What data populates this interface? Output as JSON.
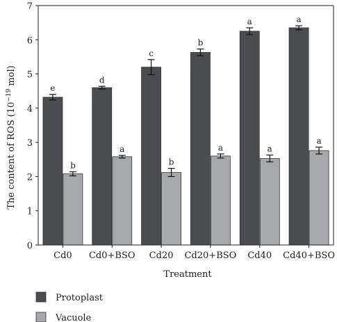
{
  "chart_data": {
    "type": "bar",
    "title": "",
    "xlabel": "Treatment",
    "ylabel": "The content of ROS (10",
    "ylabel_sup": "−19",
    "ylabel_unit": " mol)",
    "ylim": [
      0,
      7
    ],
    "yticks": [
      "0",
      "1",
      "2",
      "3",
      "4",
      "5",
      "6",
      "7"
    ],
    "categories": [
      "Cd0",
      "Cd0+BSO",
      "Cd20",
      "Cd20+BSO",
      "Cd40",
      "Cd40+BSO"
    ],
    "series": [
      {
        "name": "Protoplast",
        "color": "#4a4c50",
        "values": [
          4.32,
          4.6,
          5.2,
          5.63,
          6.25,
          6.35
        ],
        "errors": [
          0.08,
          0.04,
          0.22,
          0.1,
          0.1,
          0.06
        ],
        "letters": [
          "e",
          "d",
          "c",
          "b",
          "a",
          "a"
        ]
      },
      {
        "name": "Vacuole",
        "color": "#a6a8ab",
        "values": [
          2.08,
          2.58,
          2.12,
          2.6,
          2.53,
          2.76
        ],
        "errors": [
          0.06,
          0.04,
          0.12,
          0.06,
          0.1,
          0.1
        ],
        "letters": [
          "b",
          "a",
          "b",
          "a",
          "a",
          "a"
        ]
      }
    ],
    "legend_position": "bottom-left",
    "grid": false
  }
}
